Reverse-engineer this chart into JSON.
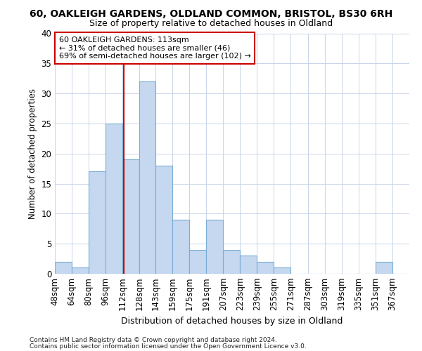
{
  "title1": "60, OAKLEIGH GARDENS, OLDLAND COMMON, BRISTOL, BS30 6RH",
  "title2": "Size of property relative to detached houses in Oldland",
  "xlabel": "Distribution of detached houses by size in Oldland",
  "ylabel": "Number of detached properties",
  "footnote1": "Contains HM Land Registry data © Crown copyright and database right 2024.",
  "footnote2": "Contains public sector information licensed under the Open Government Licence v3.0.",
  "bin_labels": [
    "48sqm",
    "64sqm",
    "80sqm",
    "96sqm",
    "112sqm",
    "128sqm",
    "143sqm",
    "159sqm",
    "175sqm",
    "191sqm",
    "207sqm",
    "223sqm",
    "239sqm",
    "255sqm",
    "271sqm",
    "287sqm",
    "303sqm",
    "319sqm",
    "335sqm",
    "351sqm",
    "367sqm"
  ],
  "bin_edges": [
    48,
    64,
    80,
    96,
    112,
    128,
    143,
    159,
    175,
    191,
    207,
    223,
    239,
    255,
    271,
    287,
    303,
    319,
    335,
    351,
    367,
    383
  ],
  "bar_values": [
    2,
    1,
    17,
    25,
    19,
    32,
    18,
    9,
    4,
    9,
    4,
    3,
    2,
    1,
    0,
    0,
    0,
    0,
    0,
    2,
    0
  ],
  "bar_color": "#c5d8f0",
  "bar_edge_color": "#7aadd4",
  "grid_color": "#c8d4e8",
  "ref_line_x": 113,
  "ref_line_color": "#cc0000",
  "annotation_text": "60 OAKLEIGH GARDENS: 113sqm\n← 31% of detached houses are smaller (46)\n69% of semi-detached houses are larger (102) →",
  "annotation_box_edgecolor": "#cc0000",
  "annotation_box_facecolor": "#ffffff",
  "ylim": [
    0,
    40
  ],
  "yticks": [
    0,
    5,
    10,
    15,
    20,
    25,
    30,
    35,
    40
  ],
  "background_color": "#ffffff",
  "title1_fontsize": 10,
  "title2_fontsize": 9
}
